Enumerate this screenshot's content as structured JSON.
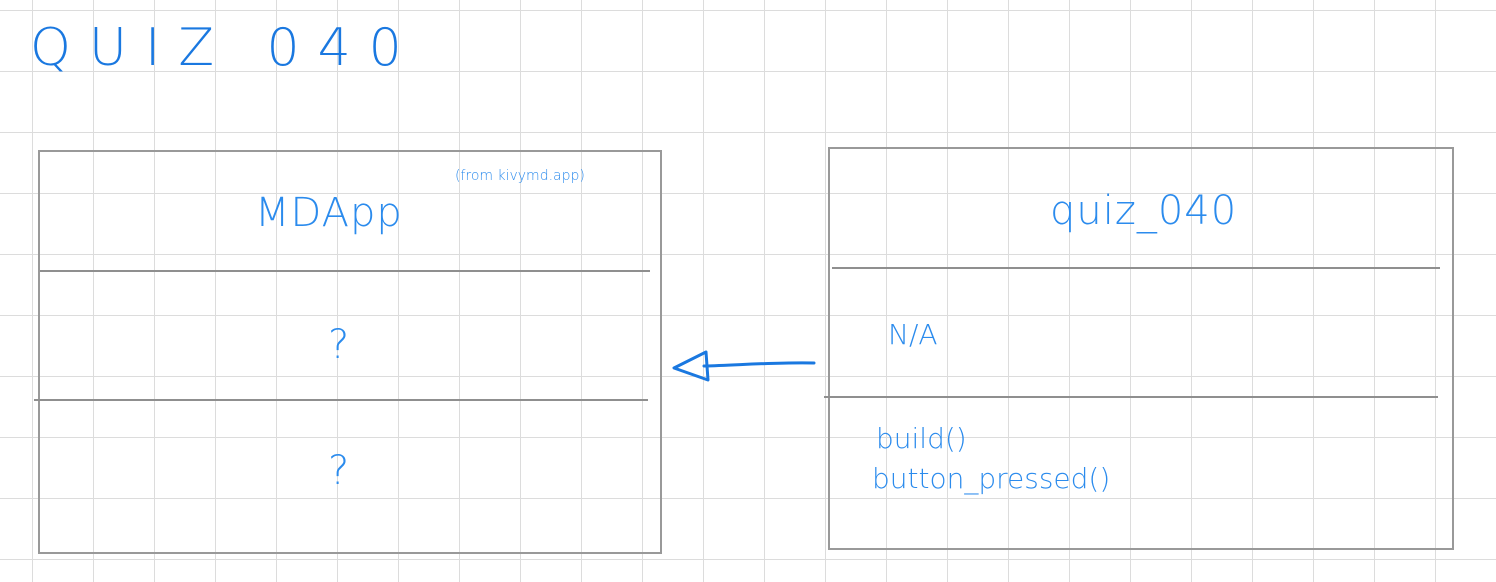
{
  "title": "QUIZ 040",
  "colors": {
    "ink": "#2b8bed",
    "title_ink": "#1a78e0",
    "box_border": "#999999",
    "grid": "#dcdcdc"
  },
  "parent_class": {
    "name": "MDApp",
    "source_note": "(from kivymd.app)",
    "attributes": "?",
    "methods": "?"
  },
  "child_class": {
    "name": "quiz_040",
    "attributes": "N/A",
    "methods": [
      "build()",
      "button_pressed()"
    ]
  },
  "relationship": {
    "type": "inheritance",
    "from": "quiz_040",
    "to": "MDApp"
  }
}
